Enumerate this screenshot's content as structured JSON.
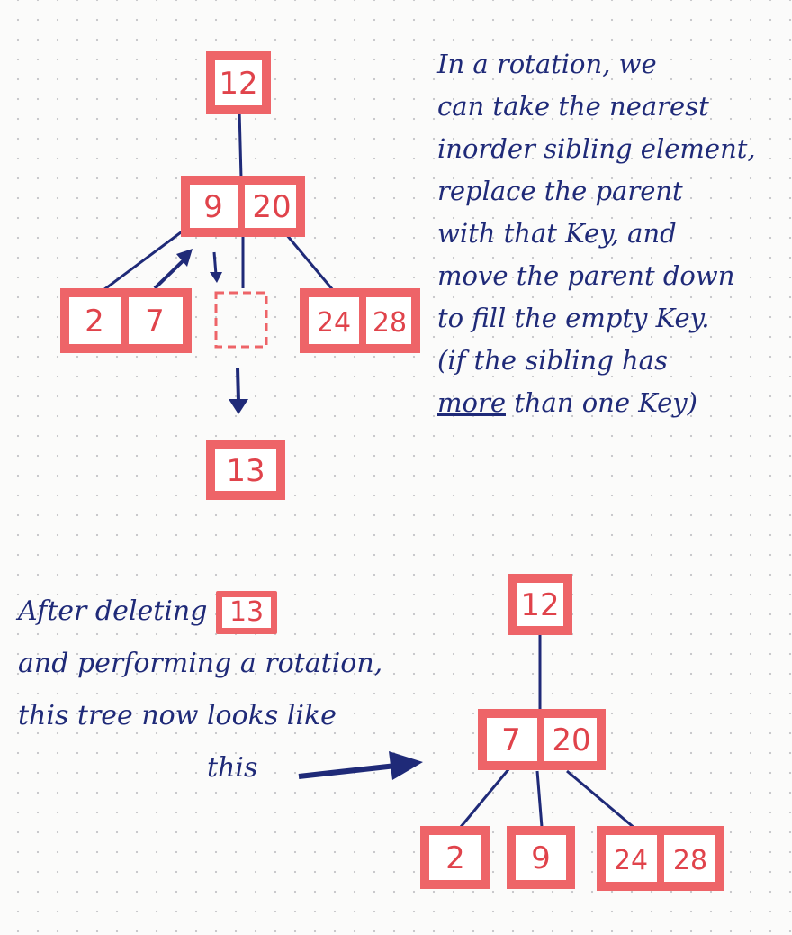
{
  "top_tree": {
    "root": [
      "12"
    ],
    "parent": [
      "9",
      "20"
    ],
    "children": [
      [
        "2",
        "7"
      ],
      [],
      [
        "24",
        "28"
      ]
    ],
    "deleted": [
      "13"
    ]
  },
  "bottom_tree": {
    "root": [
      "12"
    ],
    "parent": [
      "7",
      "20"
    ],
    "children": [
      [
        "2"
      ],
      [
        "9"
      ],
      [
        "24",
        "28"
      ]
    ]
  },
  "explanation": {
    "lines": [
      "In a rotation, we",
      "can take the nearest",
      "inorder sibling element,",
      "replace the parent",
      "with that Key, and",
      "move the parent down",
      "to fill the empty Key.",
      "(if the sibling has"
    ],
    "last_line_emphasis": "more",
    "last_line_rest": " than one Key)"
  },
  "after_note": {
    "line1": "After deleting",
    "deleted_key": "13",
    "line2": "and performing a rotation,",
    "line3": "this tree now looks like",
    "line4": "this"
  },
  "colors": {
    "ink": "#1f2a78",
    "node_border": "#ee6468",
    "node_text": "#e0434b",
    "node_fill": "#ffffff",
    "dot_grid": "#c9c9cc"
  }
}
